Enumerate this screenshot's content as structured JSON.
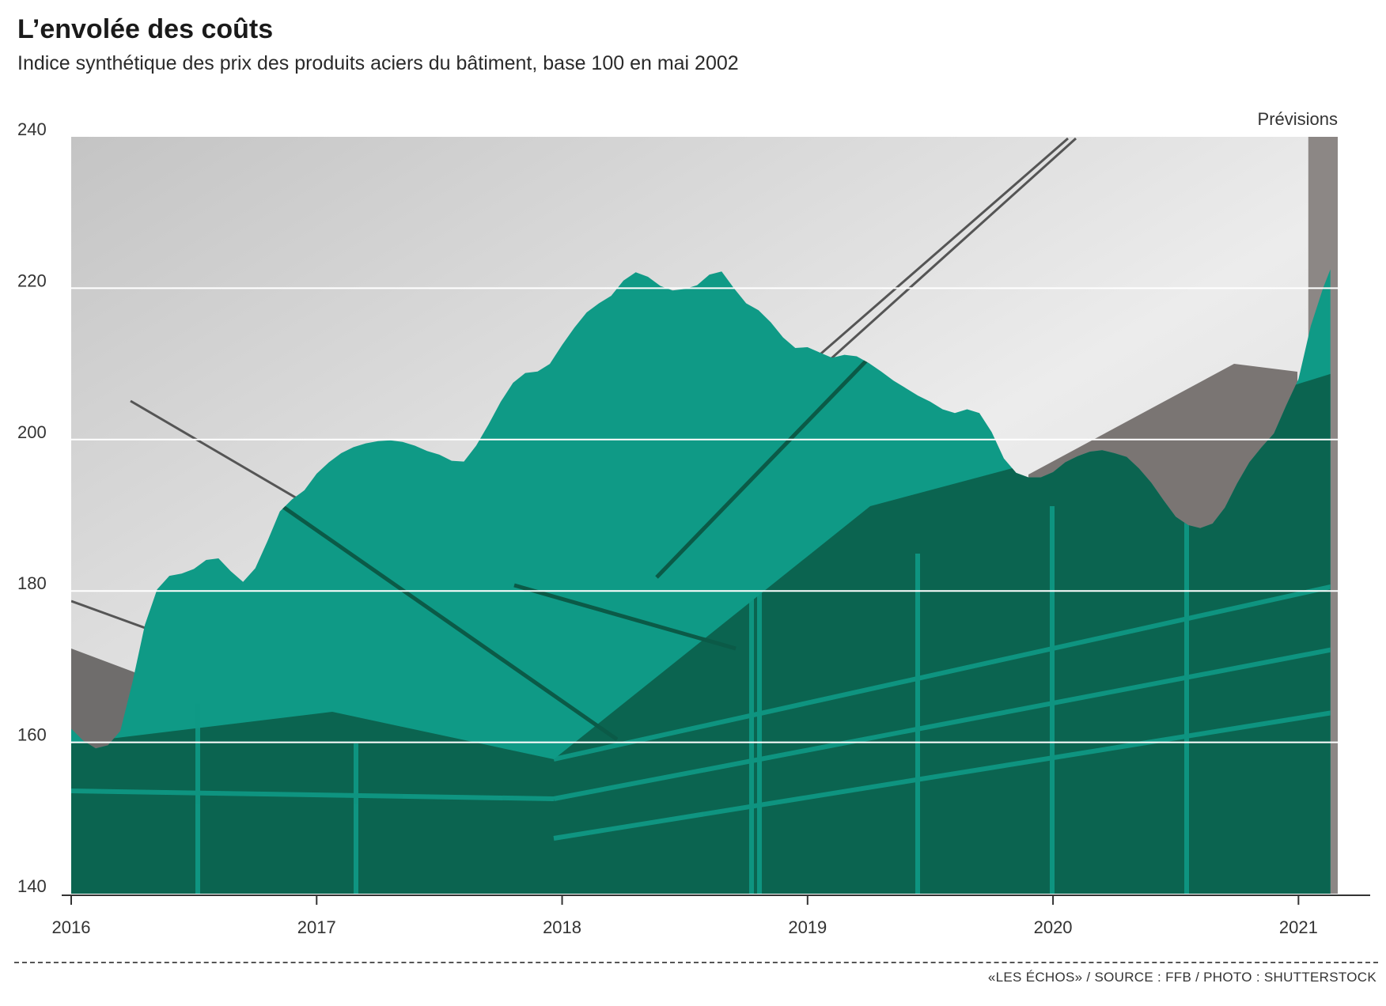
{
  "header": {
    "title": "L’envolée des coûts",
    "subtitle": "Indice synthétique des prix des produits aciers du bâtiment, base 100 en mai 2002"
  },
  "footer": {
    "credit": "«LES ÉCHOS» / SOURCE : FFB / PHOTO : SHUTTERSTOCK"
  },
  "colors": {
    "area": "#0f9a86",
    "area_dark": "#0b5a47",
    "sky_top": "#c9c9c9",
    "sky_bottom": "#efefef",
    "forecast_band": "#8c8785",
    "gridline": "#ffffff",
    "axis": "#333333"
  },
  "chart_data": {
    "type": "area",
    "title": "L’envolée des coûts",
    "subtitle": "Indice synthétique des prix des produits aciers du bâtiment, base 100 en mai 2002",
    "xlabel": "",
    "ylabel": "",
    "xlim": [
      2016,
      2021.16
    ],
    "ylim": [
      140,
      240
    ],
    "yticks": [
      140,
      160,
      180,
      200,
      220,
      240
    ],
    "xticks": [
      "2016",
      "2017",
      "2018",
      "2019",
      "2020",
      "2021"
    ],
    "grid": "horizontal",
    "forecast_label": "Prévisions",
    "forecast_start": 2021.04,
    "series": [
      {
        "x": [
          2016.0,
          2016.05,
          2016.1,
          2016.15,
          2016.2,
          2016.25,
          2016.3,
          2016.35,
          2016.4,
          2016.45,
          2016.5,
          2016.55,
          2016.6,
          2016.65,
          2016.7,
          2016.75,
          2016.8,
          2016.85,
          2016.9,
          2016.95,
          2017.0,
          2017.05,
          2017.1,
          2017.15,
          2017.2,
          2017.25,
          2017.3,
          2017.35,
          2017.4,
          2017.45,
          2017.5,
          2017.55,
          2017.6,
          2017.65,
          2017.7,
          2017.75,
          2017.8,
          2017.85,
          2017.9,
          2017.95,
          2018.0,
          2018.05,
          2018.1,
          2018.15,
          2018.2,
          2018.25,
          2018.3,
          2018.35,
          2018.4,
          2018.45,
          2018.5,
          2018.55,
          2018.6,
          2018.65,
          2018.7,
          2018.75,
          2018.8,
          2018.85,
          2018.9,
          2018.95,
          2019.0,
          2019.05,
          2019.1,
          2019.15,
          2019.2,
          2019.25,
          2019.3,
          2019.35,
          2019.4,
          2019.45,
          2019.5,
          2019.55,
          2019.6,
          2019.65,
          2019.7,
          2019.75,
          2019.8,
          2019.85,
          2019.9,
          2019.95,
          2020.0,
          2020.05,
          2020.1,
          2020.15,
          2020.2,
          2020.25,
          2020.3,
          2020.35,
          2020.4,
          2020.45,
          2020.5,
          2020.55,
          2020.6,
          2020.65,
          2020.7,
          2020.75,
          2020.8,
          2020.85,
          2020.9,
          2020.95,
          2021.0,
          2021.05,
          2021.1,
          2021.13
        ],
        "values": [
          161.8,
          160.2,
          159.2,
          159.6,
          161.5,
          168.0,
          175.5,
          180.2,
          182.0,
          182.3,
          182.9,
          184.1,
          184.3,
          182.6,
          181.2,
          183.0,
          186.6,
          190.5,
          192.1,
          193.3,
          195.5,
          197.0,
          198.2,
          199.0,
          199.5,
          199.8,
          199.9,
          199.7,
          199.2,
          198.5,
          198.0,
          197.2,
          197.1,
          199.2,
          202.0,
          205.0,
          207.5,
          208.8,
          209.0,
          210.0,
          212.5,
          214.8,
          216.8,
          218.0,
          219.0,
          221.0,
          222.1,
          221.5,
          220.3,
          219.7,
          219.9,
          220.4,
          221.8,
          222.2,
          220.0,
          218.0,
          217.1,
          215.5,
          213.5,
          212.1,
          212.2,
          211.5,
          210.8,
          211.2,
          211.0,
          210.1,
          209.0,
          207.8,
          206.8,
          205.8,
          205.0,
          204.0,
          203.5,
          204.0,
          203.5,
          201.0,
          197.5,
          195.6,
          195.0,
          195.0,
          195.7,
          197.0,
          197.8,
          198.4,
          198.6,
          198.2,
          197.7,
          196.2,
          194.3,
          192.0,
          189.8,
          188.7,
          188.3,
          188.9,
          191.0,
          194.2,
          197.0,
          199.0,
          200.8,
          204.5,
          208.0,
          215.0,
          220.0,
          222.5
        ]
      }
    ]
  }
}
